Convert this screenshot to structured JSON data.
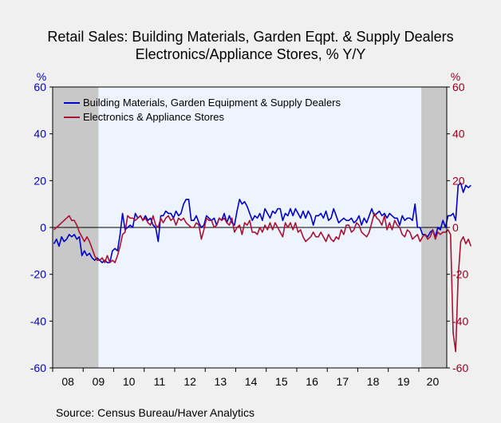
{
  "chart_data": {
    "type": "line",
    "title": "Retail Sales: Building Materials, Garden Eqpt. & Supply Dealers",
    "subtitle": "Electronics/Appliance Stores, % Y/Y",
    "source": "Source:   Census Bureau/Haver Analytics",
    "left_axis": {
      "unit": "%",
      "color": "#0000cc",
      "range": [
        -60,
        60
      ],
      "ticks": [
        "60",
        "40",
        "20",
        "0",
        "-20",
        "-40",
        "-60"
      ]
    },
    "right_axis": {
      "unit": "%",
      "color": "#990022",
      "range": [
        -60,
        60
      ],
      "ticks": [
        "60",
        "40",
        "20",
        "0",
        "-20",
        "-40",
        "-60"
      ]
    },
    "x_axis": {
      "range": [
        "2008-01",
        "2020-11"
      ],
      "tick_labels": [
        "08",
        "09",
        "10",
        "11",
        "12",
        "13",
        "14",
        "15",
        "16",
        "17",
        "18",
        "19",
        "20"
      ]
    },
    "recessions": [
      {
        "start": "2008-01",
        "end": "2009-06"
      },
      {
        "start": "2020-02",
        "end": "2020-11"
      }
    ],
    "legend": {
      "placement": "top-left"
    },
    "grid": false,
    "series": [
      {
        "name": "Building Materials, Garden Equipment & Supply Dealers",
        "color": "#0000cc",
        "start": "2008-01",
        "values": [
          -7,
          -5,
          -8,
          -4,
          -6,
          -5,
          -3,
          -4,
          -3,
          -5,
          -4,
          -12,
          -10,
          -12,
          -11,
          -13,
          -14,
          -13,
          -14,
          -15,
          -14,
          -15,
          -15,
          -10,
          -9,
          -10,
          -3,
          6,
          -1,
          0,
          1,
          0,
          6,
          4,
          5,
          3,
          5,
          3,
          4,
          1,
          0,
          -6,
          5,
          5,
          7,
          6,
          6,
          4,
          7,
          5,
          6,
          10,
          12,
          12,
          3,
          3,
          5,
          2,
          0,
          1,
          5,
          4,
          3,
          4,
          1,
          4,
          3,
          6,
          2,
          5,
          2,
          1,
          7,
          12,
          10,
          11,
          9,
          6,
          3,
          5,
          4,
          6,
          3,
          8,
          6,
          4,
          7,
          6,
          8,
          8,
          3,
          6,
          5,
          8,
          5,
          8,
          6,
          4,
          7,
          4,
          7,
          5,
          1,
          5,
          5,
          6,
          4,
          7,
          3,
          4,
          8,
          5,
          2,
          3,
          4,
          3,
          3,
          4,
          2,
          3,
          5,
          1,
          4,
          2,
          5,
          8,
          5,
          6,
          7,
          5,
          6,
          4,
          6,
          5,
          4,
          4,
          1,
          5,
          3,
          4,
          4,
          3,
          10,
          0,
          0,
          -3,
          -3,
          -4,
          -2,
          -1,
          -4,
          0,
          -1,
          3,
          0,
          5,
          5,
          6,
          3,
          18,
          19,
          15,
          18,
          17,
          18
        ]
      },
      {
        "name": "Electronics & Appliance Stores",
        "color": "#aa1133",
        "start": "2008-01",
        "values": [
          -1,
          0,
          1,
          2,
          3,
          4,
          5,
          3,
          3,
          1,
          -2,
          -4,
          -6,
          -4,
          -6,
          -9,
          -12,
          -14,
          -14,
          -13,
          -15,
          -12,
          -15,
          -14,
          -15,
          -12,
          -8,
          -3,
          -2,
          5,
          4,
          4,
          3,
          4,
          5,
          3,
          4,
          2,
          1,
          5,
          1,
          0,
          4,
          2,
          4,
          5,
          3,
          4,
          1,
          4,
          3,
          4,
          2,
          1,
          0,
          0,
          2,
          1,
          -5,
          -1,
          4,
          3,
          3,
          0,
          1,
          4,
          3,
          4,
          2,
          1,
          4,
          -2,
          0,
          1,
          -3,
          2,
          1,
          3,
          -2,
          -2,
          -3,
          0,
          -2,
          1,
          -1,
          2,
          -1,
          2,
          0,
          -2,
          -4,
          2,
          0,
          2,
          -1,
          2,
          -2,
          -1,
          -4,
          -6,
          -5,
          -4,
          -2,
          -4,
          -4,
          -2,
          -4,
          -6,
          -3,
          -5,
          -6,
          -4,
          -5,
          -1,
          -3,
          1,
          1,
          -2,
          -1,
          2,
          1,
          -2,
          -3,
          -4,
          -2,
          2,
          6,
          4,
          3,
          1,
          5,
          -1,
          2,
          -1,
          3,
          1,
          0,
          -3,
          -4,
          -1,
          -2,
          -5,
          -4,
          -3,
          -6,
          -4,
          -3,
          -5,
          -4,
          -1,
          -5,
          -2,
          -3,
          -2,
          -2,
          -1,
          -3,
          -45,
          -53,
          -21,
          -6,
          -4,
          -7,
          -5,
          -8
        ]
      }
    ]
  }
}
